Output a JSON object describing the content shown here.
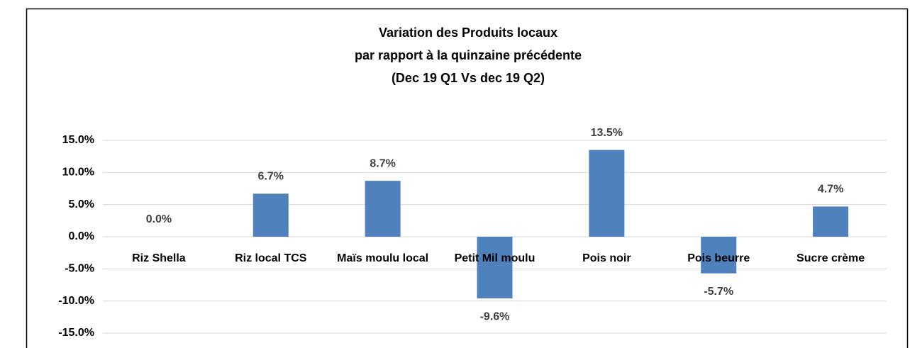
{
  "chart_data": {
    "type": "bar",
    "title": [
      "Variation des Produits locaux",
      "par rapport à la quinzaine précédente",
      "(Dec 19 Q1 Vs dec 19 Q2)"
    ],
    "categories": [
      "Riz Shella",
      "Riz local TCS",
      "Maïs moulu local",
      "Petit Mil moulu",
      "Pois noir",
      "Pois beurre",
      "Sucre crème"
    ],
    "values": [
      0,
      6.7,
      8.7,
      -9.6,
      13.5,
      -5.7,
      4.7
    ],
    "value_labels": [
      "0.0%",
      "6.7%",
      "8.7%",
      "-9.6%",
      "13.5%",
      "-5.7%",
      "4.7%"
    ],
    "color": "#4f81bd",
    "ylim": [
      -15,
      15
    ],
    "yticks": [
      {
        "value": 15,
        "label": "15.0%"
      },
      {
        "value": 10,
        "label": "10.0%"
      },
      {
        "value": 5,
        "label": "5.0%"
      },
      {
        "value": 0,
        "label": "0.0%"
      },
      {
        "value": -5,
        "label": "-5.0%"
      },
      {
        "value": -10,
        "label": "-10.0%"
      },
      {
        "value": -15,
        "label": "-15.0%"
      }
    ],
    "grid": true
  }
}
